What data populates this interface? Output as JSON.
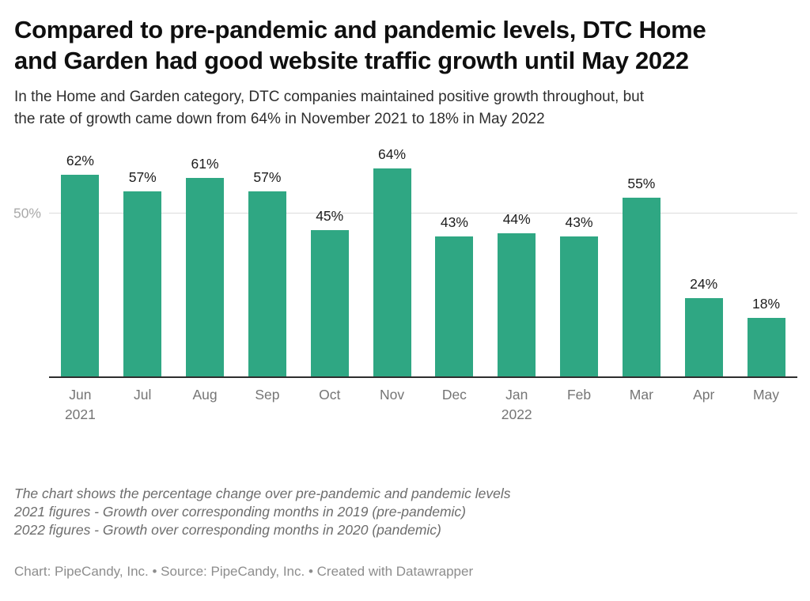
{
  "header": {
    "title_lines": [
      "Compared to pre-pandemic and pandemic levels, DTC Home",
      "and Garden had good website traffic growth until May 2022"
    ],
    "subtitle_lines": [
      "In the Home and Garden category, DTC companies maintained positive growth throughout, but",
      "the rate of growth came down from 64% in November 2021 to 18% in May 2022"
    ]
  },
  "chart_data": {
    "type": "bar",
    "title": "Compared to pre-pandemic and pandemic levels, DTC Home and Garden had good website traffic growth until May 2022",
    "subtitle": "In the Home and Garden category, DTC companies maintained positive growth throughout, but the rate of growth came down from 64% in November 2021 to 18% in May 2022",
    "categories": [
      "Jun",
      "Jul",
      "Aug",
      "Sep",
      "Oct",
      "Nov",
      "Dec",
      "Jan",
      "Feb",
      "Mar",
      "Apr",
      "May"
    ],
    "year_labels": [
      "2021",
      "",
      "",
      "",
      "",
      "",
      "",
      "2022",
      "",
      "",
      "",
      ""
    ],
    "values": [
      62,
      57,
      61,
      57,
      45,
      64,
      43,
      44,
      43,
      55,
      24,
      18
    ],
    "value_suffix": "%",
    "xlabel": "",
    "ylabel": "",
    "ylim": [
      0,
      72.5
    ],
    "gridlines": [
      {
        "value": 50,
        "label": "50%"
      }
    ],
    "grid": "single horizontal gridline at 50%, drawn behind bars",
    "legend": "none",
    "bar_color": "#2fa783",
    "axis_baseline_color": "#2e2e2e"
  },
  "notes": {
    "lines": [
      "The chart shows the percentage change over pre-pandemic and pandemic levels",
      "2021 figures - Growth over corresponding months in 2019 (pre-pandemic)",
      "2022 figures - Growth over corresponding months in 2020 (pandemic)"
    ]
  },
  "byline": "Chart: PipeCandy, Inc. • Source: PipeCandy, Inc. • Created with Datawrapper"
}
